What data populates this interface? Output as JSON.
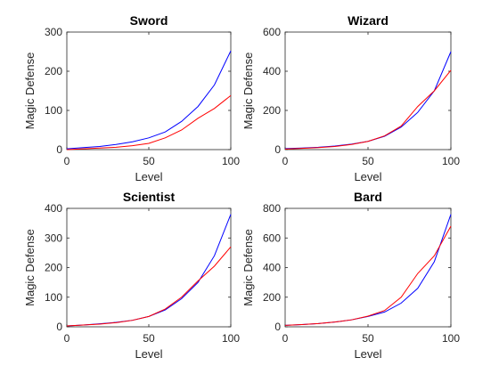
{
  "chart_data": [
    {
      "type": "line",
      "title": "Sword",
      "xlabel": "Level",
      "ylabel": "Magic Defense",
      "xlim": [
        0,
        100
      ],
      "ylim": [
        0,
        300
      ],
      "xticks": [
        "0",
        "50",
        "100"
      ],
      "yticks": [
        "0",
        "100",
        "200",
        "300"
      ],
      "grid": false,
      "series": [
        {
          "color": "#0000ff",
          "x": [
            0,
            10,
            20,
            30,
            40,
            50,
            60,
            70,
            80,
            90,
            100
          ],
          "y": [
            2,
            5,
            8,
            13,
            20,
            30,
            45,
            72,
            110,
            165,
            252
          ]
        },
        {
          "color": "#ff0000",
          "x": [
            0,
            10,
            20,
            30,
            40,
            50,
            60,
            70,
            80,
            90,
            100
          ],
          "y": [
            0,
            2,
            4,
            6,
            10,
            16,
            30,
            50,
            80,
            105,
            138
          ]
        }
      ]
    },
    {
      "type": "line",
      "title": "Wizard",
      "xlabel": "Level",
      "ylabel": "Magic Defense",
      "xlim": [
        0,
        100
      ],
      "ylim": [
        0,
        600
      ],
      "xticks": [
        "0",
        "50",
        "100"
      ],
      "yticks": [
        "0",
        "200",
        "400",
        "600"
      ],
      "grid": false,
      "series": [
        {
          "color": "#0000ff",
          "x": [
            0,
            10,
            20,
            30,
            40,
            50,
            60,
            70,
            80,
            90,
            100
          ],
          "y": [
            5,
            8,
            12,
            18,
            28,
            42,
            68,
            115,
            190,
            300,
            500
          ]
        },
        {
          "color": "#ff0000",
          "x": [
            0,
            10,
            20,
            30,
            40,
            50,
            60,
            70,
            80,
            90,
            100
          ],
          "y": [
            3,
            6,
            10,
            16,
            26,
            42,
            70,
            120,
            220,
            300,
            405
          ]
        }
      ]
    },
    {
      "type": "line",
      "title": "Scientist",
      "xlabel": "Level",
      "ylabel": "Magic Defense",
      "xlim": [
        0,
        100
      ],
      "ylim": [
        0,
        400
      ],
      "xticks": [
        "0",
        "50",
        "100"
      ],
      "yticks": [
        "0",
        "100",
        "200",
        "300",
        "400"
      ],
      "grid": false,
      "series": [
        {
          "color": "#0000ff",
          "x": [
            0,
            10,
            20,
            30,
            40,
            50,
            60,
            70,
            80,
            90,
            100
          ],
          "y": [
            3,
            6,
            10,
            15,
            22,
            35,
            57,
            95,
            150,
            240,
            380
          ]
        },
        {
          "color": "#ff0000",
          "x": [
            0,
            10,
            20,
            30,
            40,
            50,
            60,
            70,
            80,
            90,
            100
          ],
          "y": [
            3,
            6,
            9,
            14,
            22,
            35,
            60,
            100,
            155,
            205,
            270
          ]
        }
      ]
    },
    {
      "type": "line",
      "title": "Bard",
      "xlabel": "Level",
      "ylabel": "Magic Defense",
      "xlim": [
        0,
        100
      ],
      "ylim": [
        0,
        800
      ],
      "xticks": [
        "0",
        "50",
        "100"
      ],
      "yticks": [
        "0",
        "200",
        "400",
        "600",
        "800"
      ],
      "grid": false,
      "series": [
        {
          "color": "#0000ff",
          "x": [
            0,
            10,
            20,
            30,
            40,
            50,
            60,
            70,
            80,
            90,
            100
          ],
          "y": [
            10,
            15,
            22,
            32,
            47,
            70,
            100,
            160,
            260,
            440,
            760
          ]
        },
        {
          "color": "#ff0000",
          "x": [
            0,
            10,
            20,
            30,
            40,
            50,
            60,
            70,
            80,
            90,
            100
          ],
          "y": [
            10,
            15,
            22,
            32,
            47,
            72,
            110,
            200,
            360,
            480,
            680
          ]
        }
      ]
    }
  ]
}
